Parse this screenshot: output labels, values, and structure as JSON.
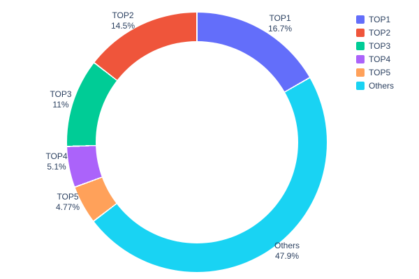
{
  "text_color": "#2a3f5f",
  "chart_data": {
    "type": "pie",
    "title": "",
    "labels": [
      "TOP1",
      "TOP2",
      "TOP3",
      "TOP4",
      "TOP5",
      "Others"
    ],
    "values": [
      16.7,
      14.5,
      11,
      5.1,
      4.77,
      47.9
    ],
    "display_pcts": [
      "16.7%",
      "14.5%",
      "11%",
      "5.1%",
      "4.77%",
      "47.9%"
    ],
    "colors": [
      "#636EFA",
      "#EF553B",
      "#00CC96",
      "#AB63FA",
      "#FFA15A",
      "#19D3F3"
    ],
    "hole": 0.78,
    "rotation_start": "top",
    "direction": "clockwise",
    "clockwise_order_indices": [
      0,
      5,
      4,
      3,
      2,
      1
    ],
    "legend_position": "right",
    "outside_labels": true
  }
}
